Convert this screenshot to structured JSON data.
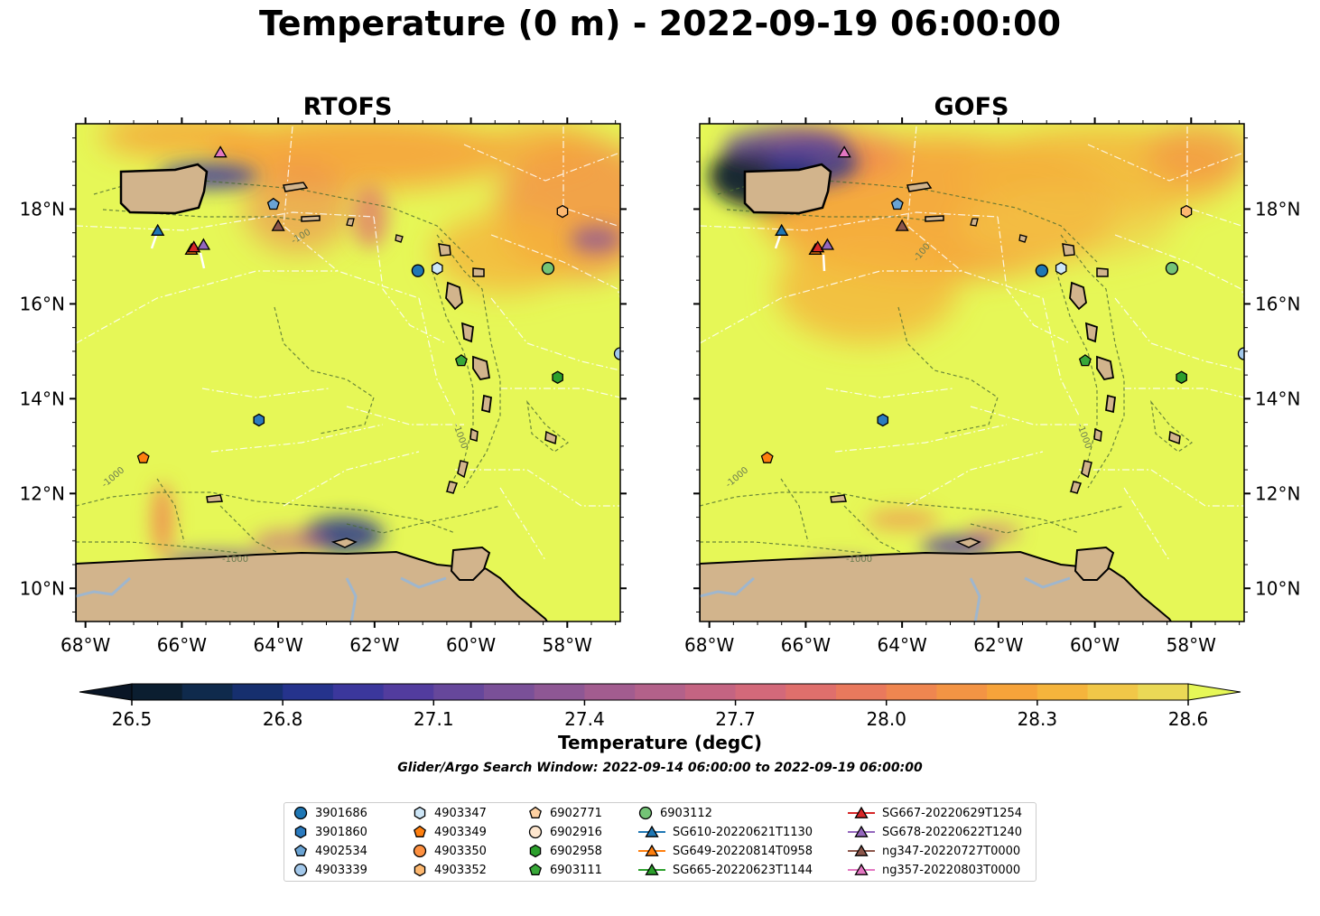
{
  "title": "Temperature (0 m) - 2022-09-19 06:00:00",
  "panels": [
    {
      "title": "RTOFS"
    },
    {
      "title": "GOFS"
    }
  ],
  "colorbar": {
    "label": "Temperature (degC)",
    "ticks": [
      "26.5",
      "26.8",
      "27.1",
      "27.4",
      "27.7",
      "28.0",
      "28.3",
      "28.6"
    ],
    "range": [
      26.5,
      28.6
    ],
    "colors": [
      "#0b1e30",
      "#0f2a4c",
      "#162f6e",
      "#25338c",
      "#3b379c",
      "#523c9e",
      "#66479b",
      "#7a5098",
      "#8e5794",
      "#a25c8f",
      "#b3618a",
      "#c46482",
      "#d3697a",
      "#df6f6c",
      "#e9795d",
      "#ef8650",
      "#f39444",
      "#f6a33a",
      "#f5b43c",
      "#f1c748",
      "#ead956"
    ],
    "extend_low_color": "#0a1626",
    "extend_high_color": "#e6f757"
  },
  "subtitle": "Glider/Argo Search Window: 2022-09-14 06:00:00 to 2022-09-19 06:00:00",
  "chart_data": {
    "type": "heatmap",
    "variable": "Temperature",
    "depth": "0 m",
    "datetime": "2022-09-19 06:00:00",
    "units": "degC",
    "xlim": [
      -68.2,
      -56.9
    ],
    "ylim": [
      9.3,
      19.8
    ],
    "xticks": [
      "68°W",
      "66°W",
      "64°W",
      "62°W",
      "60°W",
      "58°W"
    ],
    "yticks": [
      "10°N",
      "12°N",
      "14°N",
      "16°N",
      "18°N"
    ],
    "xtick_values": [
      -68,
      -66,
      -64,
      -62,
      -60,
      -58
    ],
    "ytick_values": [
      10,
      12,
      14,
      16,
      18
    ],
    "contour_labels": [
      "-1000",
      "-100"
    ],
    "panels": [
      "RTOFS",
      "GOFS"
    ],
    "markers": [
      {
        "id": "3901686",
        "kind": "argo",
        "shape": "circle",
        "color": "#1f77b4",
        "lon": -61.1,
        "lat": 16.7
      },
      {
        "id": "3901860",
        "kind": "argo",
        "shape": "hexagon",
        "color": "#2b7bbf",
        "lon": -64.4,
        "lat": 13.55
      },
      {
        "id": "4902534",
        "kind": "argo",
        "shape": "pentagon",
        "color": "#6aa3d3",
        "lon": -64.1,
        "lat": 18.1
      },
      {
        "id": "4903339",
        "kind": "argo",
        "shape": "circle",
        "color": "#a3c8ea",
        "lon": -56.9,
        "lat": 14.95
      },
      {
        "id": "4903347",
        "kind": "argo",
        "shape": "hexagon",
        "color": "#cde6f7",
        "lon": -60.7,
        "lat": 16.75
      },
      {
        "id": "4903349",
        "kind": "argo",
        "shape": "pentagon",
        "color": "#ff7f0e",
        "lon": -66.8,
        "lat": 12.75
      },
      {
        "id": "4903350",
        "kind": "argo",
        "shape": "circle",
        "color": "#fd9040",
        "lon": null,
        "lat": null
      },
      {
        "id": "4903352",
        "kind": "argo",
        "shape": "hexagon",
        "color": "#fdb870",
        "lon": -58.1,
        "lat": 17.95
      },
      {
        "id": "6902771",
        "kind": "argo",
        "shape": "pentagon",
        "color": "#fdd0a2",
        "lon": null,
        "lat": null
      },
      {
        "id": "6902916",
        "kind": "argo",
        "shape": "circle",
        "color": "#fee6ce",
        "lon": null,
        "lat": null
      },
      {
        "id": "6902958",
        "kind": "argo",
        "shape": "hexagon",
        "color": "#2ca02c",
        "lon": -58.2,
        "lat": 14.45
      },
      {
        "id": "6903111",
        "kind": "argo",
        "shape": "pentagon",
        "color": "#38a838",
        "lon": -60.2,
        "lat": 14.8
      },
      {
        "id": "6903112",
        "kind": "argo",
        "shape": "circle",
        "color": "#74c476",
        "lon": -58.4,
        "lat": 16.75
      },
      {
        "id": "SG610-20220621T1130",
        "kind": "glider",
        "shape": "triangle",
        "color": "#1f77b4",
        "lon": -66.5,
        "lat": 17.55
      },
      {
        "id": "SG649-20220814T0958",
        "kind": "glider",
        "shape": "triangle",
        "color": "#ff7f0e",
        "lon": -65.8,
        "lat": 17.15
      },
      {
        "id": "SG665-20220623T1144",
        "kind": "glider",
        "shape": "triangle",
        "color": "#2ca02c",
        "lon": null,
        "lat": null
      },
      {
        "id": "SG667-20220629T1254",
        "kind": "glider",
        "shape": "triangle",
        "color": "#d62728",
        "lon": -65.75,
        "lat": 17.2
      },
      {
        "id": "SG678-20220622T1240",
        "kind": "glider",
        "shape": "triangle",
        "color": "#9467bd",
        "lon": -65.55,
        "lat": 17.25
      },
      {
        "id": "ng347-20220727T0000",
        "kind": "glider",
        "shape": "triangle",
        "color": "#8c564b",
        "lon": -64.0,
        "lat": 17.65
      },
      {
        "id": "ng357-20220803T0000",
        "kind": "glider",
        "shape": "triangle",
        "color": "#e377c2",
        "lon": -65.2,
        "lat": 19.2
      }
    ]
  }
}
